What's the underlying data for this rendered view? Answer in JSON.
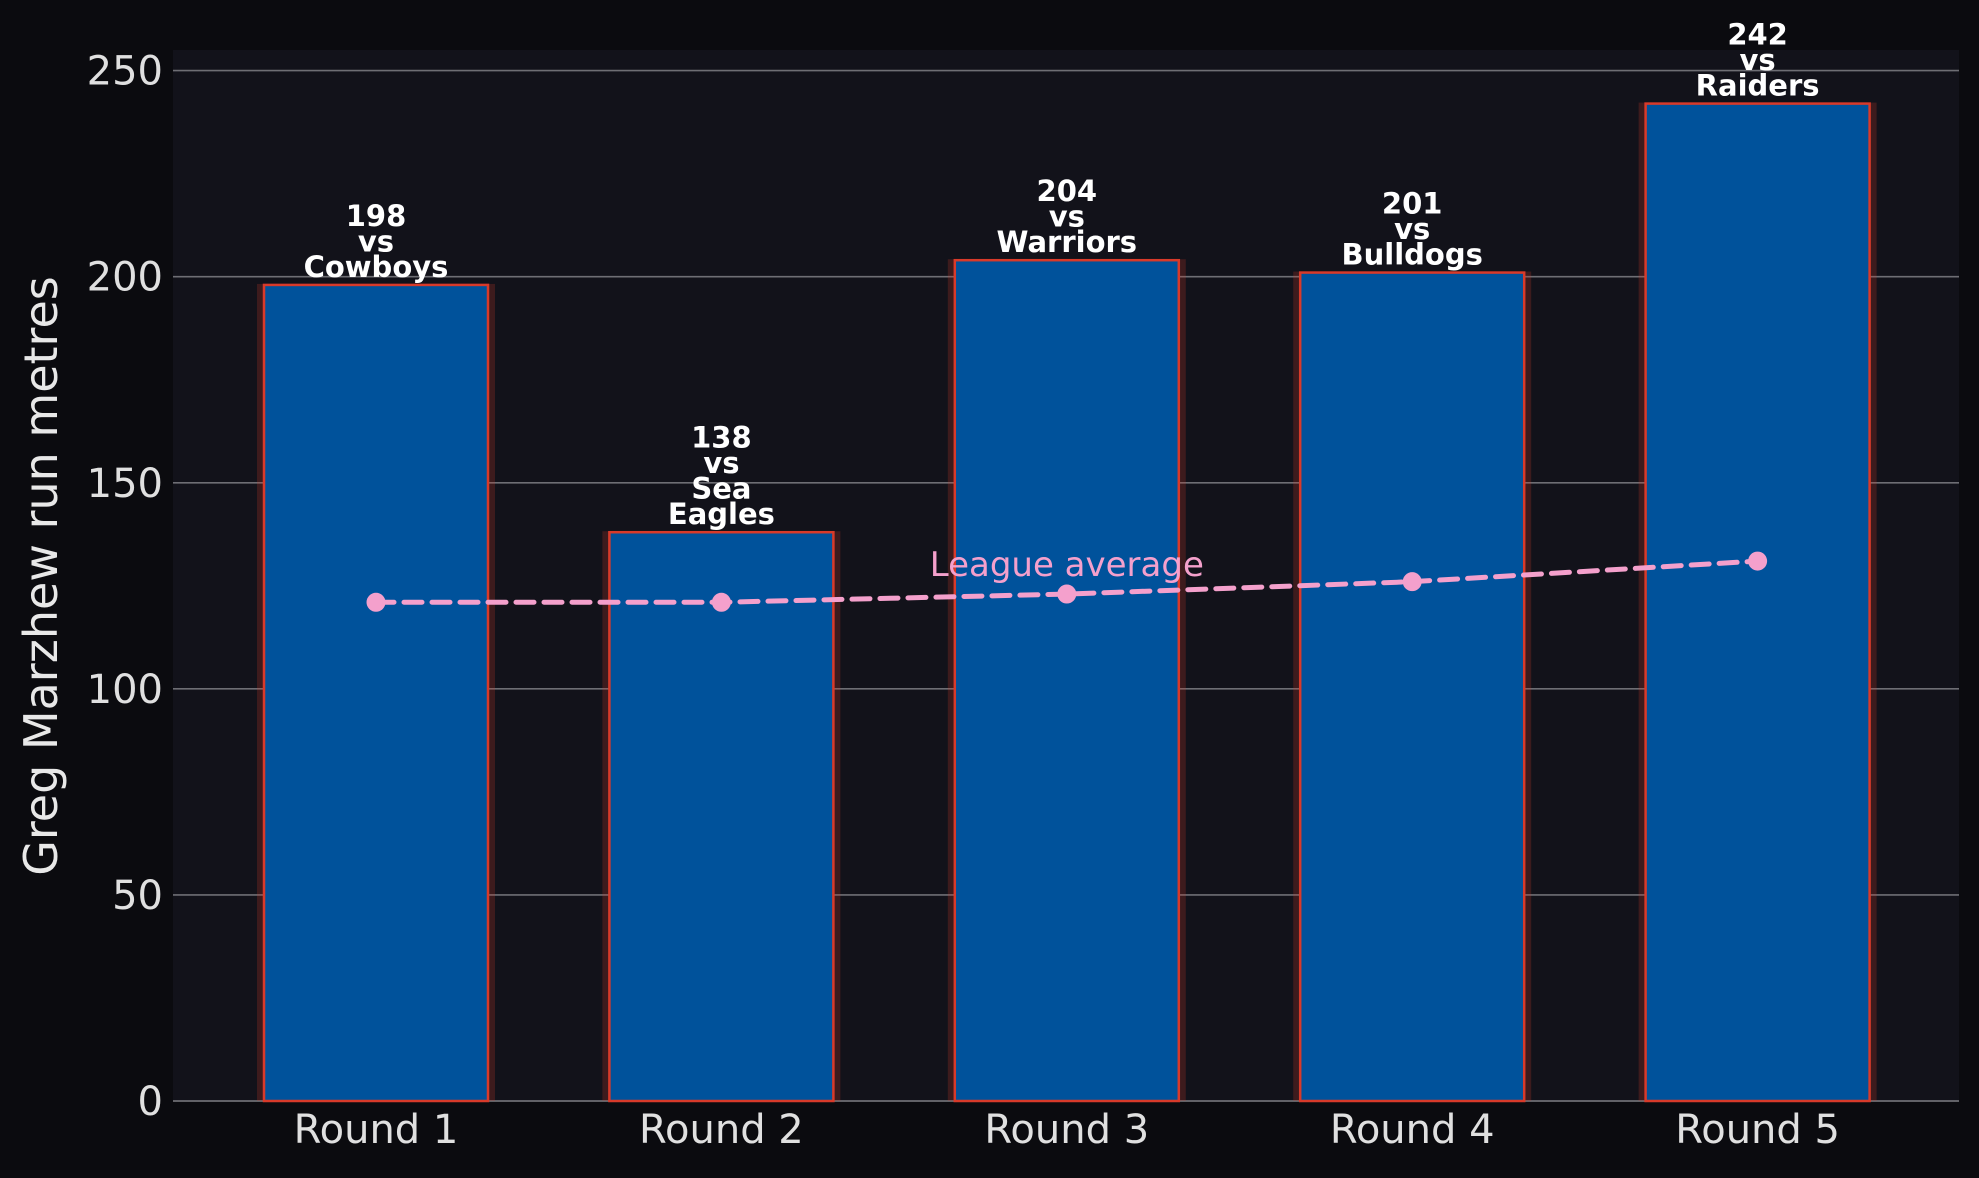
{
  "chart_data": {
    "type": "bar",
    "title": "",
    "xlabel": "",
    "ylabel": "Greg Marzhew run metres",
    "ylim": [
      0,
      255
    ],
    "yticks": [
      0,
      50,
      100,
      150,
      200,
      250
    ],
    "grid": "horizontal",
    "categories": [
      "Round 1",
      "Round 2",
      "Round 3",
      "Round 4",
      "Round 5"
    ],
    "series": [
      {
        "type": "bar",
        "values": [
          198,
          138,
          204,
          201,
          242
        ],
        "labels": [
          [
            "198",
            "vs",
            "Cowboys"
          ],
          [
            "138",
            "vs",
            "Sea",
            "Eagles"
          ],
          [
            "204",
            "vs",
            "Warriors"
          ],
          [
            "201",
            "vs",
            "Bulldogs"
          ],
          [
            "242",
            "vs",
            "Raiders"
          ]
        ],
        "color": "#00529b",
        "edge_color": "#d83a2a"
      },
      {
        "name": "League average",
        "type": "line",
        "style": "dashed",
        "markers": true,
        "values": [
          121,
          121,
          123,
          126,
          131
        ],
        "color": "#f4a0cc"
      }
    ],
    "colors": {
      "background": "#0b0b0f",
      "plot_background": "#12121a",
      "grid": "#6e6e74",
      "text": "#e0e0e0"
    }
  }
}
